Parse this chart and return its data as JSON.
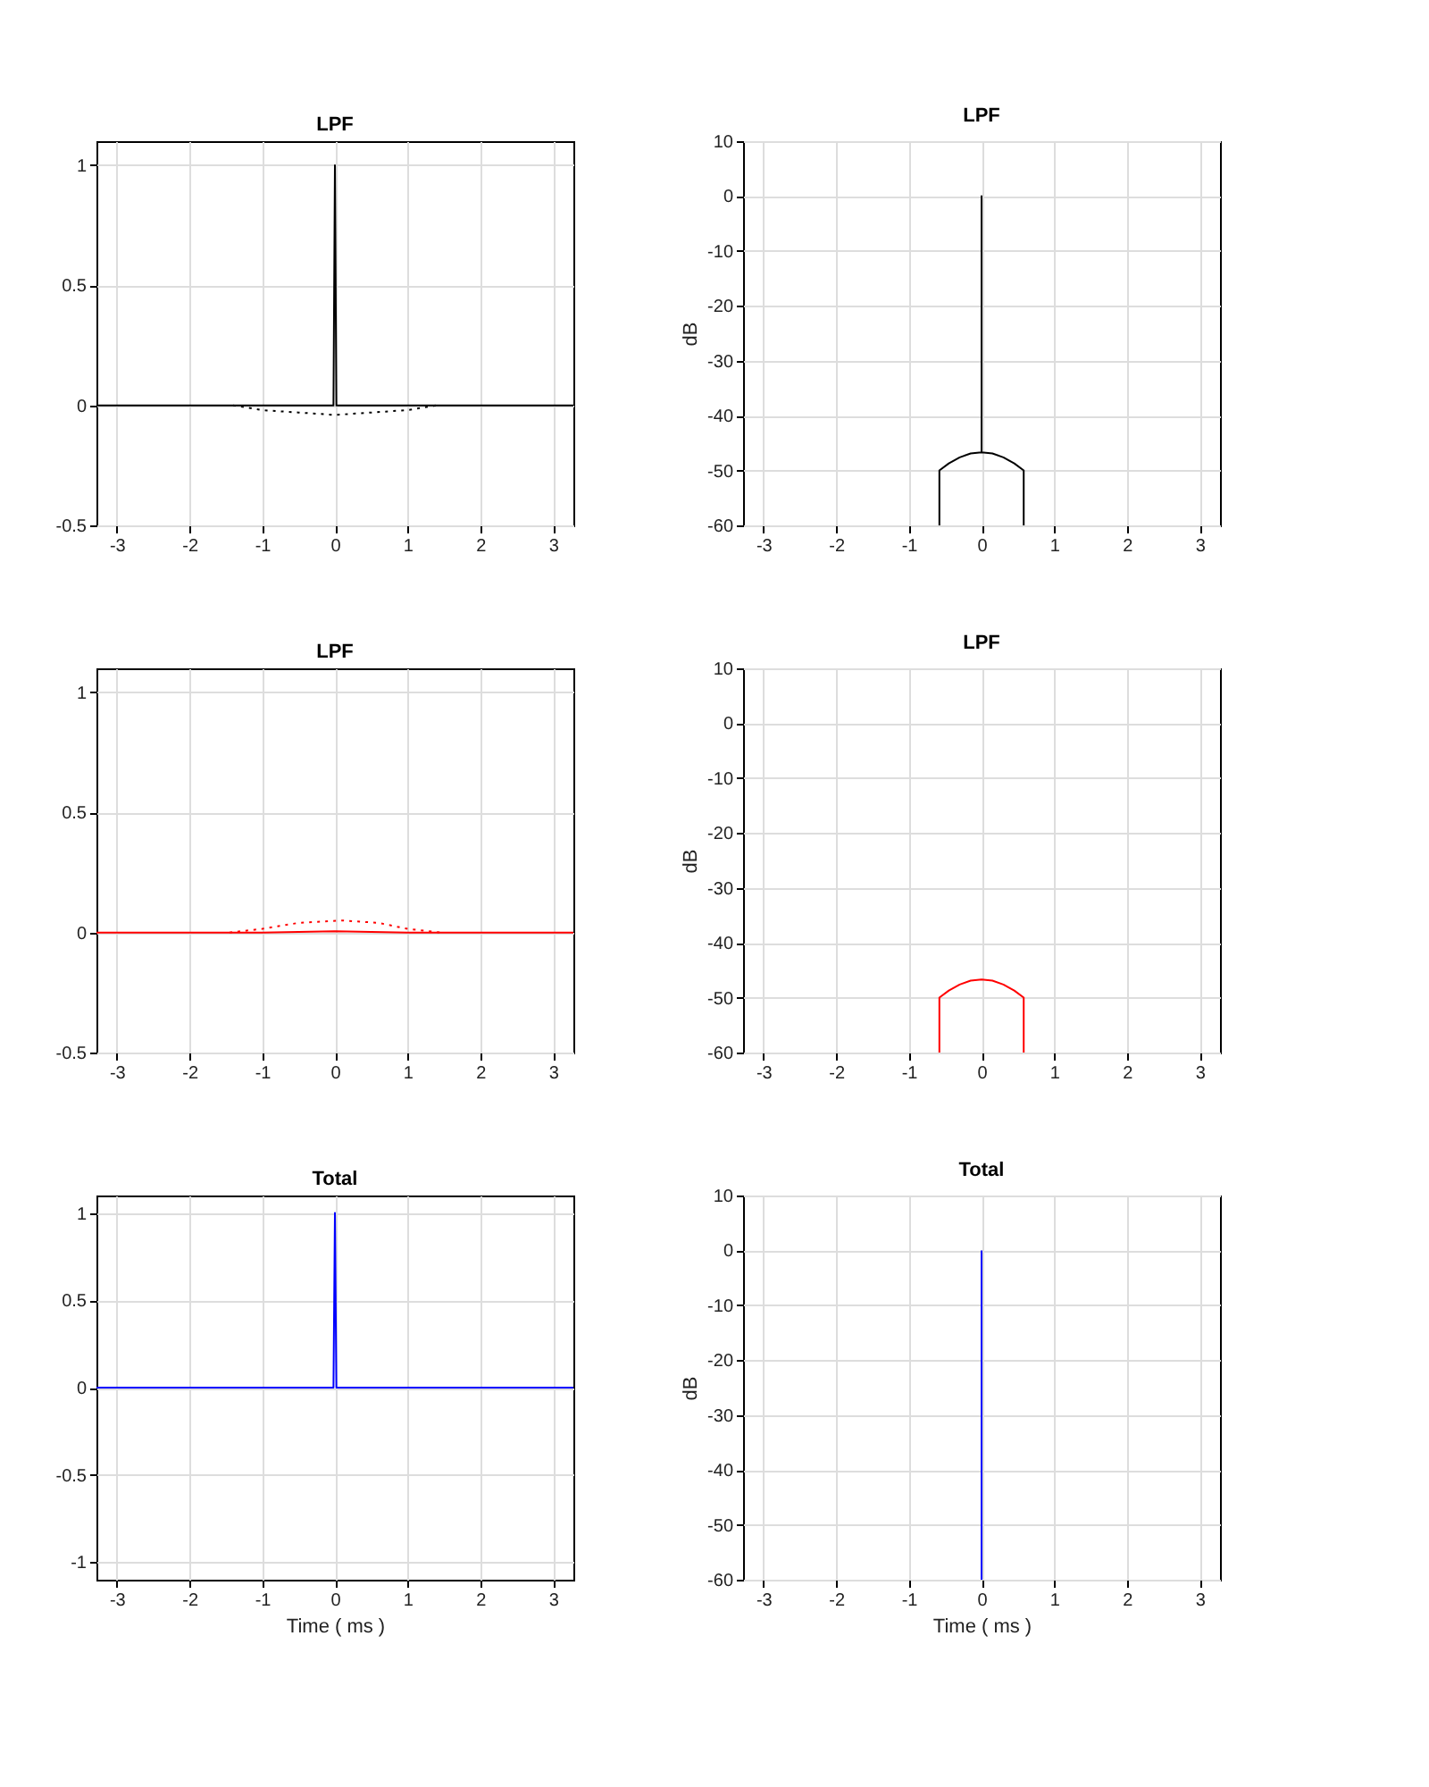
{
  "chart_data": [
    {
      "type": "line",
      "title": "LPF",
      "xlim": [
        -3.28,
        3.28
      ],
      "xticks": [
        -3,
        -2,
        -1,
        0,
        1,
        2,
        3
      ],
      "ylim": [
        -0.5,
        1.1
      ],
      "yticks": [
        -0.5,
        0,
        0.5,
        1
      ],
      "grid": true,
      "series": [
        {
          "color": "#000000",
          "line_style": "solid",
          "x": [
            -3.28,
            -0.02,
            0,
            0.02,
            3.28
          ],
          "values": [
            0,
            0,
            1,
            0,
            0
          ]
        },
        {
          "color": "#000000",
          "line_style": "dotted",
          "x": [
            -1.4,
            -1.0,
            -0.5,
            0,
            0.5,
            1.0,
            1.4
          ],
          "values": [
            0,
            -0.02,
            -0.03,
            -0.04,
            -0.03,
            -0.02,
            0
          ]
        }
      ]
    },
    {
      "type": "line",
      "title": "LPF",
      "ylabel": "dB",
      "xlim": [
        -3.28,
        3.28
      ],
      "xticks": [
        -3,
        -2,
        -1,
        0,
        1,
        2,
        3
      ],
      "ylim": [
        -60,
        10
      ],
      "yticks": [
        -60,
        -50,
        -40,
        -30,
        -20,
        -10,
        0,
        10
      ],
      "grid": true,
      "series": [
        {
          "color": "#000000",
          "line_style": "solid",
          "x": [
            -0.58,
            -0.58,
            -0.45,
            -0.3,
            -0.15,
            0,
            0,
            0,
            0.15,
            0.3,
            0.45,
            0.58,
            0.58
          ],
          "values": [
            -60,
            -50,
            -48.7,
            -47.6,
            -46.9,
            -46.7,
            0,
            -46.7,
            -46.9,
            -47.6,
            -48.7,
            -50,
            -60
          ]
        }
      ]
    },
    {
      "type": "line",
      "title": "LPF",
      "xlim": [
        -3.28,
        3.28
      ],
      "xticks": [
        -3,
        -2,
        -1,
        0,
        1,
        2,
        3
      ],
      "ylim": [
        -0.5,
        1.1
      ],
      "yticks": [
        -0.5,
        0,
        0.5,
        1
      ],
      "grid": true,
      "series": [
        {
          "color": "#ff0000",
          "line_style": "solid",
          "x": [
            -3.28,
            -1.0,
            0,
            1.0,
            3.28
          ],
          "values": [
            0,
            0,
            0.005,
            0,
            0
          ]
        },
        {
          "color": "#ff0000",
          "line_style": "dotted",
          "x": [
            -1.45,
            -1.0,
            -0.5,
            0.1,
            0.6,
            1.0,
            1.45
          ],
          "values": [
            0,
            0.015,
            0.04,
            0.05,
            0.04,
            0.015,
            0
          ]
        }
      ]
    },
    {
      "type": "line",
      "title": "LPF",
      "ylabel": "dB",
      "xlim": [
        -3.28,
        3.28
      ],
      "xticks": [
        -3,
        -2,
        -1,
        0,
        1,
        2,
        3
      ],
      "ylim": [
        -60,
        10
      ],
      "yticks": [
        -60,
        -50,
        -40,
        -30,
        -20,
        -10,
        0,
        10
      ],
      "grid": true,
      "series": [
        {
          "color": "#ff0000",
          "line_style": "solid",
          "x": [
            -0.58,
            -0.58,
            -0.45,
            -0.3,
            -0.15,
            0,
            0.15,
            0.3,
            0.45,
            0.58,
            0.58
          ],
          "values": [
            -60,
            -50,
            -48.7,
            -47.6,
            -46.9,
            -46.7,
            -46.9,
            -47.6,
            -48.7,
            -50,
            -60
          ]
        }
      ]
    },
    {
      "type": "line",
      "title": "Total",
      "xlabel": "Time ( ms )",
      "xlim": [
        -3.28,
        3.28
      ],
      "xticks": [
        -3,
        -2,
        -1,
        0,
        1,
        2,
        3
      ],
      "ylim": [
        -1.1,
        1.1
      ],
      "yticks": [
        -1,
        -0.5,
        0,
        0.5,
        1
      ],
      "grid": true,
      "series": [
        {
          "color": "#0000ff",
          "line_style": "solid",
          "x": [
            -3.28,
            -0.02,
            0,
            0.02,
            3.28
          ],
          "values": [
            0,
            0,
            1,
            0,
            0
          ]
        }
      ]
    },
    {
      "type": "line",
      "title": "Total",
      "xlabel": "Time ( ms )",
      "ylabel": "dB",
      "xlim": [
        -3.28,
        3.28
      ],
      "xticks": [
        -3,
        -2,
        -1,
        0,
        1,
        2,
        3
      ],
      "ylim": [
        -60,
        10
      ],
      "yticks": [
        -60,
        -50,
        -40,
        -30,
        -20,
        -10,
        0,
        10
      ],
      "grid": true,
      "series": [
        {
          "color": "#0000ff",
          "line_style": "solid",
          "x": [
            0,
            0
          ],
          "values": [
            -60,
            0
          ]
        }
      ]
    }
  ]
}
